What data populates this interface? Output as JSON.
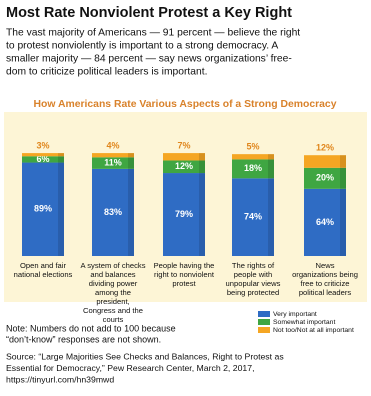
{
  "chart_data": {
    "type": "bar",
    "title": "Most Rate Nonviolent Protest a Key Right",
    "intro": [
      "The vast majority of Americans — 91 percent — believe the right",
      "to protest nonviolently is important to a strong democracy. A",
      "smaller majority — 84 percent — say news organizations’ free-",
      "dom to criticize political leaders is important."
    ],
    "subtitle": "How Americans Rate Various Aspects of a Strong Democracy",
    "categories": [
      "Open and fair national elections",
      "A system of checks and balances dividing power among the president, Congress and the courts",
      "People having the right to nonviolent protest",
      "The rights of people with unpopular views being protected",
      "News organizations being free to criticize political leaders"
    ],
    "series": [
      {
        "name": "Very important",
        "color": "#2f6cc4",
        "values": [
          89,
          83,
          79,
          74,
          64
        ],
        "value_labels": [
          "89%",
          "83%",
          "79%",
          "74%",
          "64%"
        ]
      },
      {
        "name": "Somewhat important",
        "color": "#3fa642",
        "values": [
          6,
          11,
          12,
          18,
          20
        ],
        "value_labels": [
          "6%",
          "11%",
          "12%",
          "18%",
          "20%"
        ]
      },
      {
        "name": "Not too/Not at all important",
        "color": "#f5a623",
        "values": [
          3,
          4,
          7,
          5,
          12
        ],
        "value_labels": [
          "3%",
          "4%",
          "7%",
          "5%",
          "12%"
        ]
      }
    ],
    "note": [
      "Note: Numbers do not add to 100 because",
      "“don’t-know” responses are not shown."
    ],
    "source": [
      "Source: “Large Majorities See Checks and Balances, Right to Protest as",
      "Essential for Democracy,” Pew Research Center, March 2, 2017,",
      "https://tinyurl.com/hn39mwd"
    ]
  }
}
